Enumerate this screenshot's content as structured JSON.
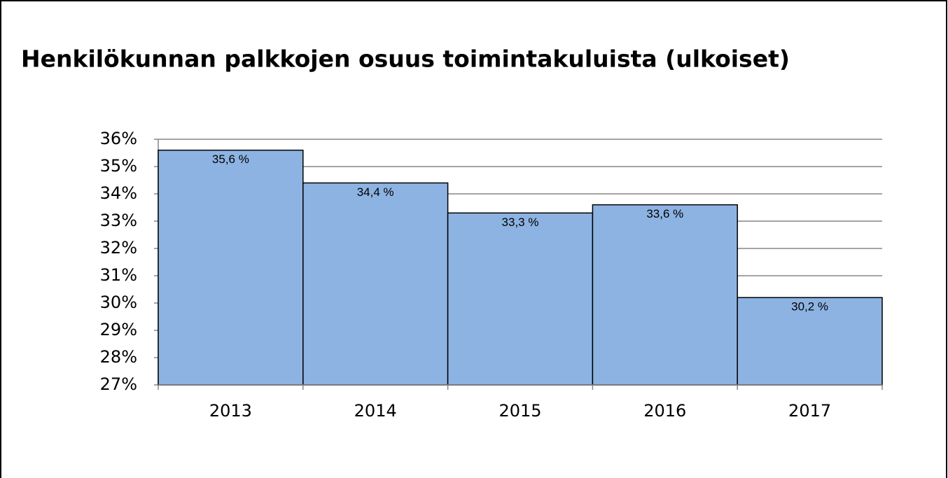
{
  "chart_data": {
    "type": "bar",
    "title": "Henkilökunnan palkkojen osuus toimintakuluista (ulkoiset)",
    "categories": [
      "2013",
      "2014",
      "2015",
      "2016",
      "2017"
    ],
    "values": [
      35.6,
      34.4,
      33.3,
      33.6,
      30.2
    ],
    "value_labels": [
      "35,6 %",
      "34,4 %",
      "33,3 %",
      "33,6 %",
      "30,2 %"
    ],
    "color": "#8db3e2",
    "ylim": [
      27,
      36
    ],
    "yticks": [
      {
        "value": 27,
        "label": "27%"
      },
      {
        "value": 28,
        "label": "28%"
      },
      {
        "value": 29,
        "label": "29%"
      },
      {
        "value": 30,
        "label": "30%"
      },
      {
        "value": 31,
        "label": "31%"
      },
      {
        "value": 32,
        "label": "32%"
      },
      {
        "value": 33,
        "label": "33%"
      },
      {
        "value": 34,
        "label": "34%"
      },
      {
        "value": 35,
        "label": "35%"
      },
      {
        "value": 36,
        "label": "36%"
      }
    ],
    "grid": true
  }
}
